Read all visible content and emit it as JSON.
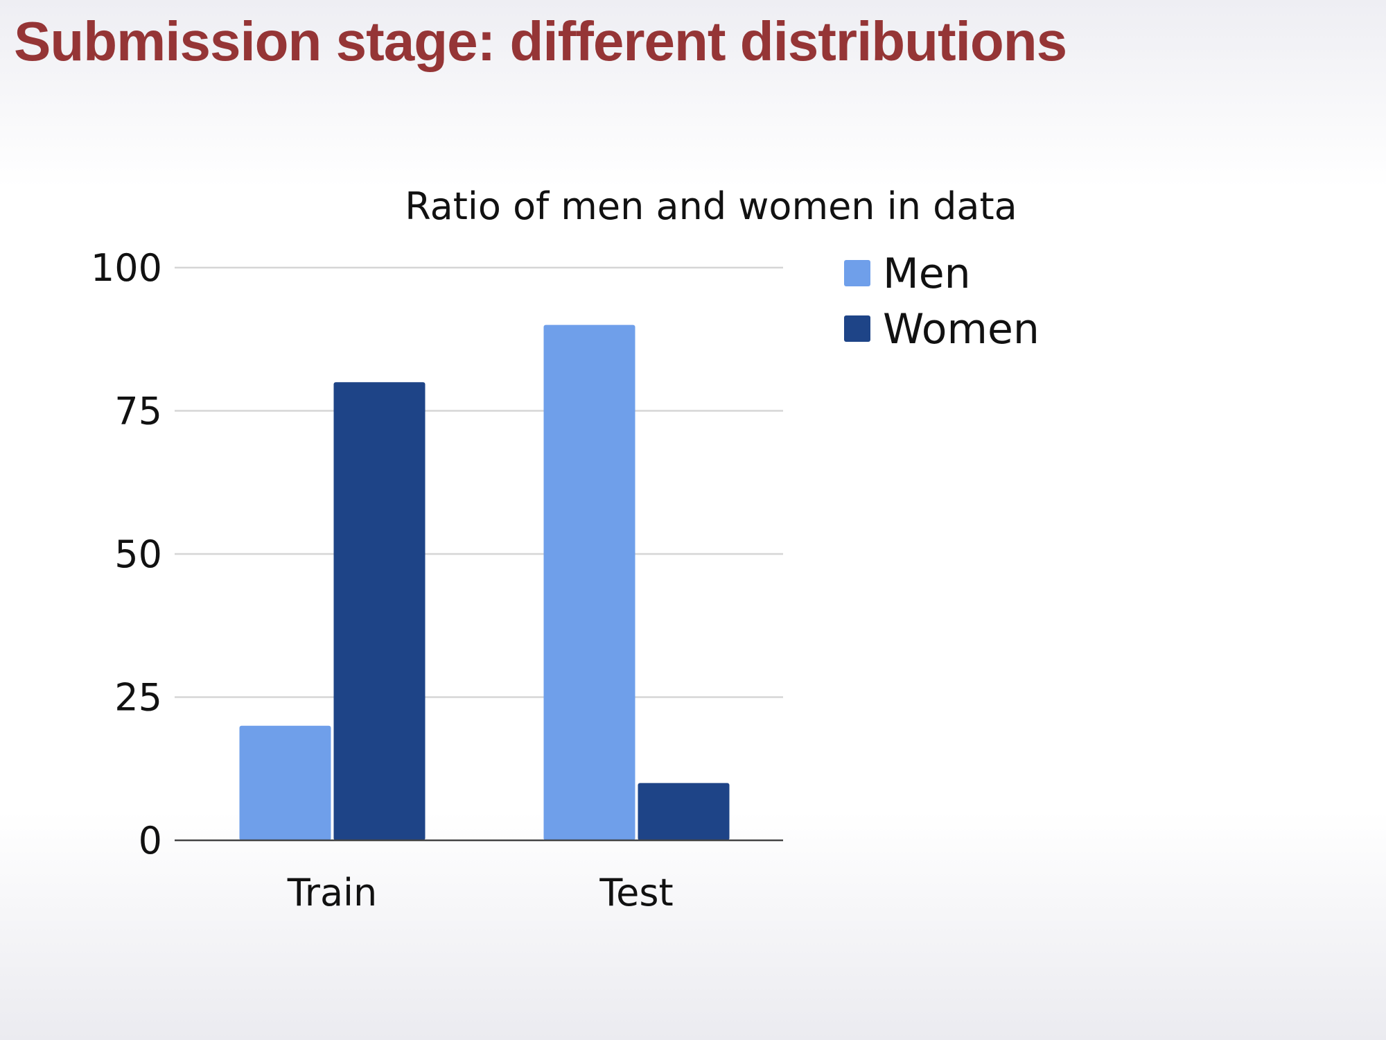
{
  "slide": {
    "title": "Submission stage: different distributions"
  },
  "colors": {
    "title": "#953536",
    "men": "#6f9fea",
    "women": "#1e4487",
    "grid": "#d6d6d6",
    "axis": "#444444"
  },
  "chart_data": {
    "type": "bar",
    "title": "Ratio of men and women in data",
    "xlabel": "",
    "ylabel": "",
    "categories": [
      "Train",
      "Test"
    ],
    "series": [
      {
        "name": "Men",
        "values": [
          20,
          90
        ],
        "color": "#6f9fea"
      },
      {
        "name": "Women",
        "values": [
          80,
          10
        ],
        "color": "#1e4487"
      }
    ],
    "ylim": [
      0,
      100
    ],
    "yticks": [
      0,
      25,
      50,
      75,
      100
    ],
    "grid": true,
    "legend": "right"
  }
}
